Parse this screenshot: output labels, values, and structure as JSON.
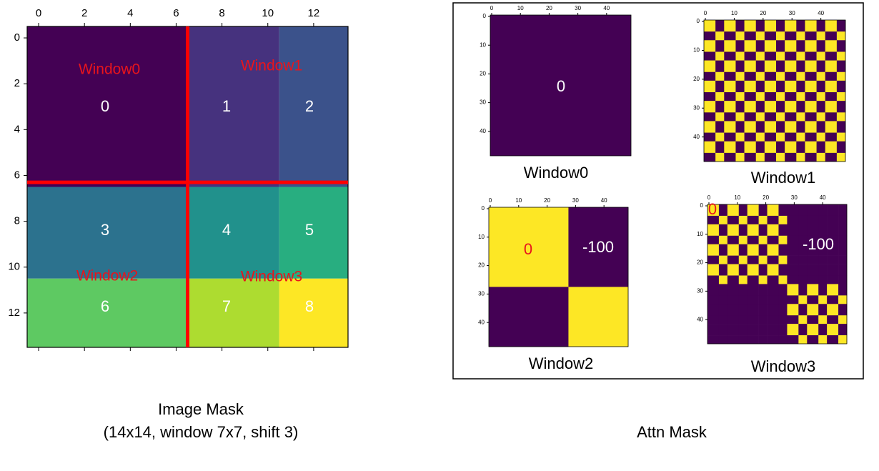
{
  "image_mask": {
    "x_ticks": [
      0,
      2,
      4,
      6,
      8,
      10,
      12
    ],
    "y_ticks": [
      0,
      2,
      4,
      6,
      8,
      10,
      12
    ],
    "region_labels": [
      0,
      1,
      2,
      3,
      4,
      5,
      6,
      7,
      8
    ],
    "window_labels": [
      "Window0",
      "Window1",
      "Window2",
      "Window3"
    ],
    "caption": [
      "Image Mask",
      "(14x14, window 7x7, shift 3)"
    ]
  },
  "attn_mask": {
    "title": "Attn Mask",
    "ticks": [
      0,
      10,
      20,
      30,
      40
    ],
    "panels": [
      {
        "caption": "Window0",
        "annotations": [
          0
        ]
      },
      {
        "caption": "Window1",
        "annotations": []
      },
      {
        "caption": "Window2",
        "annotations": [
          0,
          -100
        ]
      },
      {
        "caption": "Window3",
        "annotations": [
          0,
          -100
        ]
      }
    ]
  }
}
